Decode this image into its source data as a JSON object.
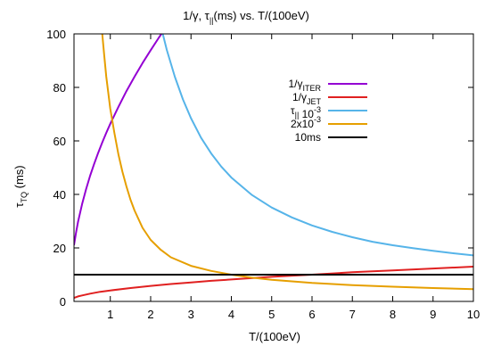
{
  "chart_data": {
    "type": "line",
    "title": {
      "main": "1/γ, τ",
      "sub": "||",
      "tail": "(ms)  vs. T/(100eV)"
    },
    "xlabel": "T/(100eV)",
    "ylabel": {
      "main": "τ",
      "sub": "TQ",
      "tail": " (ms)"
    },
    "xlim": [
      0.1,
      10
    ],
    "ylim": [
      0,
      100
    ],
    "xticks": [
      1,
      2,
      3,
      4,
      5,
      6,
      7,
      8,
      9,
      10
    ],
    "yticks": [
      0,
      20,
      40,
      60,
      80,
      100
    ],
    "grid": false,
    "legend_position": "top-right",
    "series": [
      {
        "name": "1/γ",
        "name_sub": "ITER",
        "name_sup": "",
        "color": "#9400d3",
        "x": [
          0.1,
          0.15,
          0.2,
          0.3,
          0.4,
          0.5,
          0.6,
          0.7,
          0.8,
          0.9,
          1.0,
          1.2,
          1.4,
          1.6,
          1.8,
          2.0,
          2.2,
          2.4,
          2.6,
          2.65
        ],
        "y": [
          21.0,
          25.7,
          29.7,
          36.4,
          42.0,
          47.0,
          51.4,
          55.6,
          59.4,
          63.0,
          66.4,
          72.7,
          78.6,
          84.0,
          89.1,
          93.9,
          98.5,
          102.9,
          107.1,
          108.0
        ]
      },
      {
        "name": "1/γ",
        "name_sub": "JET",
        "name_sup": "",
        "color": "#e02020",
        "x": [
          0.1,
          0.2,
          0.3,
          0.5,
          0.75,
          1.0,
          1.5,
          2.0,
          2.5,
          3.0,
          3.5,
          4.0,
          5.0,
          6.0,
          7.0,
          8.0,
          9.0,
          10.0
        ],
        "y": [
          1.3,
          1.85,
          2.25,
          2.9,
          3.6,
          4.1,
          5.0,
          5.8,
          6.5,
          7.1,
          7.7,
          8.2,
          9.2,
          10.0,
          10.9,
          11.6,
          12.3,
          13.0
        ]
      },
      {
        "name": "τ",
        "name_sub": "||",
        "name_sup": "-3",
        "name_tail": " 10",
        "color": "#56b4e9",
        "x": [
          2.3,
          2.4,
          2.6,
          2.8,
          3.0,
          3.25,
          3.5,
          3.75,
          4.0,
          4.5,
          5.0,
          5.5,
          6.0,
          6.5,
          7.0,
          7.5,
          8.0,
          8.5,
          9.0,
          9.5,
          10.0
        ],
        "y": [
          100.0,
          94.0,
          84.0,
          75.5,
          68.5,
          61.2,
          55.3,
          50.4,
          46.3,
          39.9,
          35.1,
          31.4,
          28.4,
          26.0,
          24.0,
          22.3,
          21.0,
          19.9,
          18.9,
          18.0,
          17.2
        ]
      },
      {
        "name": "2x10",
        "name_sub": "",
        "name_sup": "-3",
        "color": "#e69f00",
        "x": [
          0.8,
          0.85,
          0.9,
          1.0,
          1.1,
          1.2,
          1.3,
          1.4,
          1.5,
          1.6,
          1.8,
          2.0,
          2.25,
          2.5,
          3.0,
          3.5,
          4.0,
          4.5,
          5.0,
          6.0,
          7.0,
          8.0,
          9.0,
          10.0
        ],
        "y": [
          100.0,
          92.0,
          84.0,
          72.0,
          63.0,
          55.0,
          48.5,
          43.0,
          38.0,
          34.0,
          27.5,
          23.0,
          19.3,
          16.5,
          13.3,
          11.4,
          10.0,
          8.9,
          8.1,
          6.9,
          6.1,
          5.5,
          5.0,
          4.6
        ]
      },
      {
        "name": "10ms",
        "name_sub": "",
        "name_sup": "",
        "color": "#000000",
        "x": [
          0.1,
          10.0
        ],
        "y": [
          10.0,
          10.0
        ]
      }
    ]
  }
}
